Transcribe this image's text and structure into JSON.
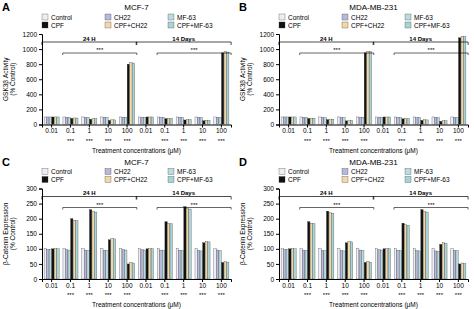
{
  "chart_data": [
    {
      "type": "bar",
      "title": "MCF-7",
      "xlabel": "Treatment concentrations (μM)",
      "ylabel": "GSK3β Activity\n(% Control)",
      "categories": [
        "0.01",
        "0.1",
        "1",
        "10",
        "100",
        "0.01",
        "0.1",
        "1",
        "10",
        "100"
      ],
      "series": [
        {
          "name": "Control",
          "color": "#ededf5",
          "values": [
            100,
            100,
            100,
            100,
            100,
            100,
            100,
            100,
            100,
            100
          ]
        },
        {
          "name": "CH22",
          "color": "#b8b8dc",
          "values": [
            100,
            98,
            96,
            95,
            97,
            98,
            96,
            94,
            93,
            96
          ]
        },
        {
          "name": "MF-63",
          "color": "#b8dce0",
          "values": [
            100,
            97,
            95,
            94,
            96,
            97,
            95,
            93,
            92,
            95
          ]
        },
        {
          "name": "CPF",
          "color": "#111111",
          "values": [
            100,
            82,
            70,
            55,
            800,
            100,
            78,
            60,
            50,
            950
          ]
        },
        {
          "name": "CPF+CH22",
          "color": "#f0d8a8",
          "values": [
            100,
            87,
            76,
            62,
            820,
            100,
            84,
            66,
            57,
            970
          ]
        },
        {
          "name": "CPF+MF-63",
          "color": "#a8d4d8",
          "values": [
            100,
            86,
            75,
            61,
            815,
            100,
            83,
            65,
            56,
            960
          ]
        }
      ],
      "ylim": [
        0,
        1200
      ],
      "yticks": [
        0,
        200,
        400,
        600,
        800,
        1000,
        1200
      ],
      "legend": "top",
      "annotations": [
        "A",
        "24 H",
        "14 Days",
        "***",
        "***",
        "***",
        "***",
        "***",
        "***",
        "***",
        "***",
        "***",
        "***"
      ]
    },
    {
      "type": "bar",
      "title": "MDA-MB-231",
      "xlabel": "Treatment concentrations (μM)",
      "ylabel": "GSK3β Activity\n(% Control)",
      "categories": [
        "0.01",
        "0.1",
        "1",
        "10",
        "100",
        "0.01",
        "0.1",
        "1",
        "10",
        "100"
      ],
      "series": [
        {
          "name": "Control",
          "color": "#ededf5",
          "values": [
            100,
            100,
            100,
            100,
            100,
            100,
            100,
            100,
            100,
            100
          ]
        },
        {
          "name": "CH22",
          "color": "#b8b8dc",
          "values": [
            100,
            97,
            95,
            93,
            96,
            98,
            95,
            93,
            91,
            95
          ]
        },
        {
          "name": "MF-63",
          "color": "#b8dce0",
          "values": [
            100,
            96,
            94,
            92,
            95,
            97,
            94,
            92,
            90,
            94
          ]
        },
        {
          "name": "CPF",
          "color": "#111111",
          "values": [
            100,
            80,
            65,
            48,
            950,
            100,
            75,
            55,
            42,
            1150
          ]
        },
        {
          "name": "CPF+CH22",
          "color": "#f0d8a8",
          "values": [
            100,
            85,
            72,
            55,
            970,
            100,
            81,
            62,
            50,
            1170
          ]
        },
        {
          "name": "CPF+MF-63",
          "color": "#a8d4d8",
          "values": [
            100,
            84,
            71,
            54,
            965,
            100,
            80,
            61,
            49,
            1165
          ]
        }
      ],
      "ylim": [
        0,
        1200
      ],
      "yticks": [
        0,
        200,
        400,
        600,
        800,
        1000,
        1200
      ],
      "legend": "top",
      "annotations": [
        "B",
        "24 H",
        "14 Days",
        "***",
        "***",
        "***",
        "***",
        "***",
        "***",
        "***",
        "***",
        "***",
        "***"
      ]
    },
    {
      "type": "bar",
      "title": "MCF-7",
      "xlabel": "Treatment concentrations (μM)",
      "ylabel": "β-Catenin Expression\n(% Control)",
      "categories": [
        "0.01",
        "0.1",
        "1",
        "10",
        "100",
        "0.01",
        "0.1",
        "1",
        "10",
        "100"
      ],
      "series": [
        {
          "name": "Control",
          "color": "#ededf5",
          "values": [
            100,
            100,
            100,
            100,
            100,
            100,
            100,
            100,
            100,
            100
          ]
        },
        {
          "name": "CH22",
          "color": "#b8b8dc",
          "values": [
            98,
            97,
            96,
            95,
            97,
            97,
            96,
            95,
            94,
            96
          ]
        },
        {
          "name": "MF-63",
          "color": "#b8dce0",
          "values": [
            98,
            96,
            95,
            94,
            96,
            96,
            95,
            94,
            93,
            95
          ]
        },
        {
          "name": "CPF",
          "color": "#111111",
          "values": [
            100,
            200,
            230,
            130,
            50,
            100,
            190,
            240,
            120,
            55
          ]
        },
        {
          "name": "CPF+CH22",
          "color": "#f0d8a8",
          "values": [
            100,
            195,
            225,
            135,
            55,
            100,
            185,
            235,
            125,
            58
          ]
        },
        {
          "name": "CPF+MF-63",
          "color": "#a8d4d8",
          "values": [
            100,
            193,
            222,
            133,
            53,
            100,
            183,
            232,
            123,
            56
          ]
        }
      ],
      "ylim": [
        0,
        300
      ],
      "yticks": [
        0,
        50,
        100,
        150,
        200,
        250,
        300
      ],
      "legend": "top",
      "annotations": [
        "C",
        "24 H",
        "14 Days",
        "***",
        "***",
        "***",
        "***",
        "***",
        "***",
        "***",
        "***",
        "***",
        "***"
      ]
    },
    {
      "type": "bar",
      "title": "MDA-MB-231",
      "xlabel": "Treatment concentrations (μM)",
      "ylabel": "β-Catenin Expression\n(% Control)",
      "categories": [
        "0.01",
        "0.1",
        "1",
        "10",
        "100",
        "0.01",
        "0.1",
        "1",
        "10",
        "100"
      ],
      "series": [
        {
          "name": "Control",
          "color": "#ededf5",
          "values": [
            100,
            100,
            100,
            100,
            100,
            100,
            100,
            100,
            100,
            100
          ]
        },
        {
          "name": "CH22",
          "color": "#b8b8dc",
          "values": [
            98,
            96,
            95,
            94,
            96,
            97,
            95,
            94,
            93,
            95
          ]
        },
        {
          "name": "MF-63",
          "color": "#b8dce0",
          "values": [
            98,
            95,
            94,
            93,
            95,
            96,
            94,
            93,
            92,
            94
          ]
        },
        {
          "name": "CPF",
          "color": "#111111",
          "values": [
            100,
            190,
            225,
            120,
            55,
            100,
            185,
            230,
            115,
            50
          ]
        },
        {
          "name": "CPF+CH22",
          "color": "#f0d8a8",
          "values": [
            100,
            185,
            220,
            125,
            58,
            100,
            180,
            225,
            120,
            53
          ]
        },
        {
          "name": "CPF+MF-63",
          "color": "#a8d4d8",
          "values": [
            100,
            183,
            218,
            123,
            56,
            100,
            178,
            222,
            118,
            51
          ]
        }
      ],
      "ylim": [
        0,
        300
      ],
      "yticks": [
        0,
        50,
        100,
        150,
        200,
        250,
        300
      ],
      "legend": "top",
      "annotations": [
        "D",
        "24 H",
        "14 Days",
        "***",
        "***",
        "***",
        "***",
        "***",
        "***",
        "***",
        "***",
        "***",
        "***"
      ]
    }
  ]
}
